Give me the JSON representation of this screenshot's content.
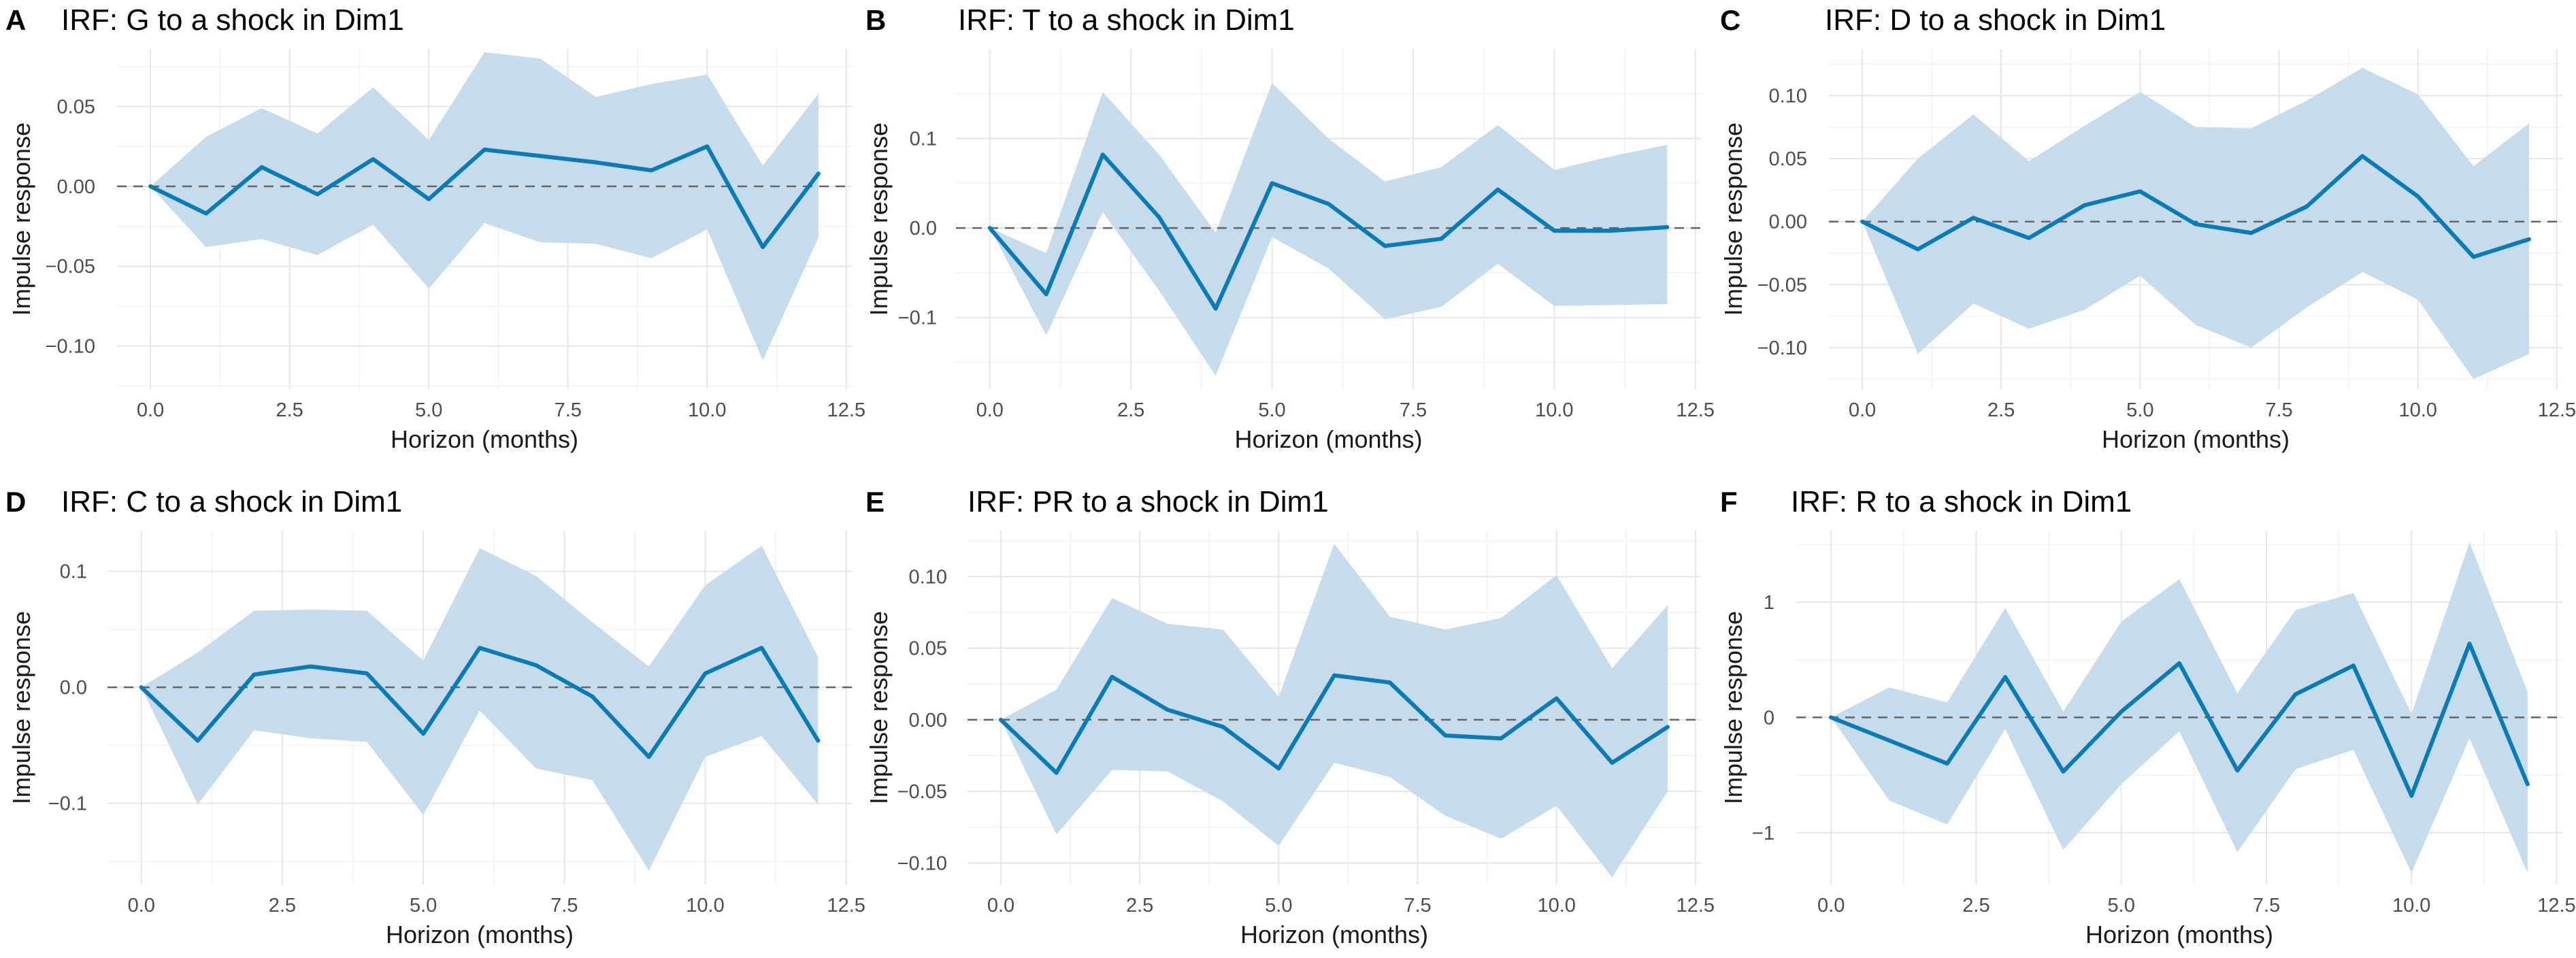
{
  "style": {
    "band_color": "#c6dcec",
    "line_color": "#0a7bb4"
  },
  "chart_data": [
    {
      "type": "line",
      "letter": "A",
      "title": "IRF: G to a shock in Dim1",
      "xlabel": "Horizon (months)",
      "ylabel": "Impulse response",
      "xlim": [
        -0.6,
        12.6
      ],
      "ylim": [
        -0.127,
        0.086
      ],
      "xticks": [
        0,
        2.5,
        5,
        7.5,
        10,
        12.5
      ],
      "xtick_labels": [
        "0.0",
        "2.5",
        "5.0",
        "7.5",
        "10.0",
        "12.5"
      ],
      "yticks": [
        -0.1,
        -0.05,
        0,
        0.05
      ],
      "ytick_labels": [
        "−0.10",
        "−0.05",
        "0.00",
        "0.05"
      ],
      "x": [
        0,
        1,
        2,
        3,
        4,
        5,
        6,
        7,
        8,
        9,
        10,
        11,
        12
      ],
      "series": [
        {
          "name": "response",
          "values": [
            0,
            -0.017,
            0.012,
            -0.005,
            0.017,
            -0.008,
            0.023,
            0.019,
            0.015,
            0.01,
            0.025,
            -0.038,
            0.008
          ]
        },
        {
          "name": "lower",
          "values": [
            0,
            -0.038,
            -0.033,
            -0.043,
            -0.024,
            -0.064,
            -0.023,
            -0.035,
            -0.036,
            -0.045,
            -0.027,
            -0.109,
            -0.032
          ]
        },
        {
          "name": "upper",
          "values": [
            0,
            0.031,
            0.049,
            0.033,
            0.062,
            0.029,
            0.084,
            0.08,
            0.056,
            0.064,
            0.07,
            0.013,
            0.058
          ]
        }
      ]
    },
    {
      "type": "line",
      "letter": "B",
      "title": "IRF: T to a shock in Dim1",
      "xlabel": "Horizon (months)",
      "ylabel": "Impulse response",
      "xlim": [
        -0.6,
        12.6
      ],
      "ylim": [
        -0.18,
        0.2
      ],
      "xticks": [
        0,
        2.5,
        5,
        7.5,
        10,
        12.5
      ],
      "xtick_labels": [
        "0.0",
        "2.5",
        "5.0",
        "7.5",
        "10.0",
        "12.5"
      ],
      "yticks": [
        -0.1,
        0,
        0.1
      ],
      "ytick_labels": [
        "−0.1",
        "0.0",
        "0.1"
      ],
      "x": [
        0,
        1,
        2,
        3,
        4,
        5,
        6,
        7,
        8,
        9,
        10,
        11,
        12
      ],
      "series": [
        {
          "name": "response",
          "values": [
            0,
            -0.074,
            0.082,
            0.012,
            -0.09,
            0.05,
            0.027,
            -0.02,
            -0.012,
            0.043,
            -0.003,
            -0.003,
            0.001
          ]
        },
        {
          "name": "lower",
          "values": [
            0,
            -0.12,
            0.018,
            -0.07,
            -0.165,
            -0.01,
            -0.045,
            -0.102,
            -0.088,
            -0.04,
            -0.087,
            -0.086,
            -0.085
          ]
        },
        {
          "name": "upper",
          "values": [
            0,
            -0.028,
            0.152,
            0.082,
            -0.005,
            0.162,
            0.1,
            0.052,
            0.068,
            0.115,
            0.065,
            0.08,
            0.093
          ]
        }
      ]
    },
    {
      "type": "line",
      "letter": "C",
      "title": "IRF: D to a shock in Dim1",
      "xlabel": "Horizon (months)",
      "ylabel": "Impulse response",
      "xlim": [
        -0.6,
        12.6
      ],
      "ylim": [
        -0.133,
        0.137
      ],
      "xticks": [
        0,
        2.5,
        5,
        7.5,
        10,
        12.5
      ],
      "xtick_labels": [
        "0.0",
        "2.5",
        "5.0",
        "7.5",
        "10.0",
        "12.5"
      ],
      "yticks": [
        -0.1,
        -0.05,
        0,
        0.05,
        0.1
      ],
      "ytick_labels": [
        "−0.10",
        "−0.05",
        "0.00",
        "0.05",
        "0.10"
      ],
      "x": [
        0,
        1,
        2,
        3,
        4,
        5,
        6,
        7,
        8,
        9,
        10,
        11,
        12
      ],
      "series": [
        {
          "name": "response",
          "values": [
            0,
            -0.022,
            0.003,
            -0.013,
            0.013,
            0.024,
            -0.002,
            -0.009,
            0.012,
            0.052,
            0.02,
            -0.028,
            -0.014
          ]
        },
        {
          "name": "lower",
          "values": [
            0,
            -0.105,
            -0.065,
            -0.085,
            -0.07,
            -0.043,
            -0.082,
            -0.1,
            -0.068,
            -0.04,
            -0.062,
            -0.125,
            -0.105
          ]
        },
        {
          "name": "upper",
          "values": [
            0,
            0.05,
            0.085,
            0.048,
            0.076,
            0.103,
            0.075,
            0.074,
            0.096,
            0.122,
            0.101,
            0.044,
            0.078
          ]
        }
      ]
    },
    {
      "type": "line",
      "letter": "D",
      "title": "IRF: C to a shock in Dim1",
      "xlabel": "Horizon (months)",
      "ylabel": "Impulse response",
      "xlim": [
        -0.6,
        12.6
      ],
      "ylim": [
        -0.17,
        0.135
      ],
      "xticks": [
        0,
        2.5,
        5,
        7.5,
        10,
        12.5
      ],
      "xtick_labels": [
        "0.0",
        "2.5",
        "5.0",
        "7.5",
        "10.0",
        "12.5"
      ],
      "yticks": [
        -0.1,
        0,
        0.1
      ],
      "ytick_labels": [
        "−0.1",
        "0.0",
        "0.1"
      ],
      "x": [
        0,
        1,
        2,
        3,
        4,
        5,
        6,
        7,
        8,
        9,
        10,
        11,
        12
      ],
      "series": [
        {
          "name": "response",
          "values": [
            0,
            -0.046,
            0.011,
            0.018,
            0.012,
            -0.04,
            0.034,
            0.019,
            -0.008,
            -0.06,
            0.012,
            0.034,
            -0.046
          ]
        },
        {
          "name": "lower",
          "values": [
            0,
            -0.101,
            -0.037,
            -0.044,
            -0.047,
            -0.11,
            -0.02,
            -0.07,
            -0.08,
            -0.158,
            -0.06,
            -0.042,
            -0.101
          ]
        },
        {
          "name": "upper",
          "values": [
            0,
            0.03,
            0.066,
            0.067,
            0.066,
            0.023,
            0.12,
            0.096,
            0.056,
            0.018,
            0.088,
            0.122,
            0.026
          ]
        }
      ]
    },
    {
      "type": "line",
      "letter": "E",
      "title": "IRF: PR to a shock in Dim1",
      "xlabel": "Horizon (months)",
      "ylabel": "Impulse response",
      "xlim": [
        -0.6,
        12.6
      ],
      "ylim": [
        -0.115,
        0.132
      ],
      "xticks": [
        0,
        2.5,
        5,
        7.5,
        10,
        12.5
      ],
      "xtick_labels": [
        "0.0",
        "2.5",
        "5.0",
        "7.5",
        "10.0",
        "12.5"
      ],
      "yticks": [
        -0.1,
        -0.05,
        0,
        0.05,
        0.1
      ],
      "ytick_labels": [
        "−0.10",
        "−0.05",
        "0.00",
        "0.05",
        "0.10"
      ],
      "x": [
        0,
        1,
        2,
        3,
        4,
        5,
        6,
        7,
        8,
        9,
        10,
        11,
        12
      ],
      "series": [
        {
          "name": "response",
          "values": [
            0,
            -0.037,
            0.03,
            0.007,
            -0.005,
            -0.034,
            0.031,
            0.026,
            -0.011,
            -0.013,
            0.015,
            -0.03,
            -0.005
          ]
        },
        {
          "name": "lower",
          "values": [
            0,
            -0.08,
            -0.035,
            -0.036,
            -0.057,
            -0.088,
            -0.03,
            -0.04,
            -0.067,
            -0.083,
            -0.06,
            -0.11,
            -0.05
          ]
        },
        {
          "name": "upper",
          "values": [
            0,
            0.021,
            0.085,
            0.067,
            0.063,
            0.016,
            0.123,
            0.072,
            0.063,
            0.071,
            0.101,
            0.036,
            0.08
          ]
        }
      ]
    },
    {
      "type": "line",
      "letter": "F",
      "title": "IRF: R to a shock in Dim1",
      "xlabel": "Horizon (months)",
      "ylabel": "Impulse response",
      "xlim": [
        -0.6,
        12.6
      ],
      "ylim": [
        -1.45,
        1.62
      ],
      "xticks": [
        0,
        2.5,
        5,
        7.5,
        10,
        12.5
      ],
      "xtick_labels": [
        "0.0",
        "2.5",
        "5.0",
        "7.5",
        "10.0",
        "12.5"
      ],
      "yticks": [
        -1,
        0,
        1
      ],
      "ytick_labels": [
        "−1",
        "0",
        "1"
      ],
      "x": [
        0,
        1,
        2,
        3,
        4,
        5,
        6,
        7,
        8,
        9,
        10,
        11,
        12
      ],
      "series": [
        {
          "name": "response",
          "values": [
            0,
            -0.2,
            -0.4,
            0.35,
            -0.47,
            0.05,
            0.47,
            -0.46,
            0.2,
            0.45,
            -0.68,
            0.64,
            -0.58
          ]
        },
        {
          "name": "lower",
          "values": [
            0,
            -0.72,
            -0.93,
            -0.1,
            -1.15,
            -0.58,
            -0.12,
            -1.17,
            -0.45,
            -0.28,
            -1.35,
            -0.18,
            -1.35
          ]
        },
        {
          "name": "upper",
          "values": [
            0,
            0.26,
            0.13,
            0.95,
            0.05,
            0.83,
            1.2,
            0.21,
            0.93,
            1.08,
            0.03,
            1.52,
            0.22
          ]
        }
      ]
    }
  ]
}
